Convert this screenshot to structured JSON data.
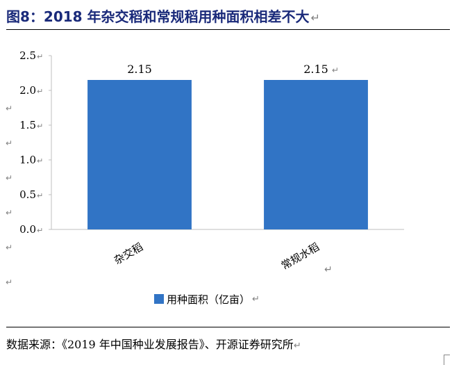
{
  "figure": {
    "title": "图8：2018 年杂交稻和常规稻用种面积相差不大",
    "source": "数据来源：《2019 年中国种业发展报告》、开源证券研究所"
  },
  "chart_data": {
    "type": "bar",
    "categories": [
      "杂交稻",
      "常规水稻"
    ],
    "series": [
      {
        "name": "用种面积（亿亩）",
        "values": [
          2.15,
          2.15
        ],
        "color": "#3174c5"
      }
    ],
    "data_labels": [
      "2.15",
      "2.15"
    ],
    "ylim": [
      0,
      2.5
    ],
    "yticks": [
      "0.0",
      "0.5",
      "1.0",
      "1.5",
      "2.0",
      "2.5"
    ],
    "grid": false,
    "legend_position": "bottom"
  }
}
